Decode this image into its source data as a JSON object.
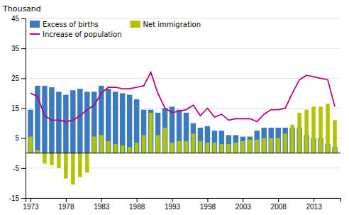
{
  "chart_data": {
    "type": "bar",
    "x": [
      1973,
      1974,
      1975,
      1976,
      1977,
      1978,
      1979,
      1980,
      1981,
      1982,
      1983,
      1984,
      1985,
      1986,
      1987,
      1988,
      1989,
      1990,
      1991,
      1992,
      1993,
      1994,
      1995,
      1996,
      1997,
      1998,
      1999,
      2000,
      2001,
      2002,
      2003,
      2004,
      2005,
      2006,
      2007,
      2008,
      2009,
      2010,
      2011,
      2012,
      2013,
      2014,
      2015,
      2016
    ],
    "series": [
      {
        "name": "Excess of births",
        "type": "bar",
        "color": "#3a7abf",
        "values": [
          14.5,
          22.5,
          22.5,
          22.0,
          20.5,
          19.5,
          21.0,
          21.5,
          20.5,
          20.5,
          22.5,
          21.5,
          20.5,
          20.0,
          19.5,
          18.0,
          14.5,
          14.5,
          13.5,
          15.0,
          15.5,
          14.5,
          13.5,
          10.0,
          8.5,
          9.0,
          7.5,
          7.5,
          6.0,
          6.0,
          5.5,
          5.5,
          7.5,
          8.5,
          8.5,
          8.5,
          8.5,
          8.5,
          8.5,
          6.0,
          5.0,
          5.0,
          3.0,
          2.0
        ]
      },
      {
        "name": "Net immigration",
        "type": "bar",
        "color": "#b5c200",
        "values": [
          5.5,
          1.0,
          -3.5,
          -4.0,
          -5.0,
          -8.5,
          -10.5,
          -8.0,
          -6.5,
          5.5,
          6.0,
          4.0,
          3.0,
          2.5,
          2.0,
          3.5,
          6.0,
          13.5,
          6.0,
          8.5,
          3.5,
          4.0,
          4.0,
          6.5,
          4.0,
          3.5,
          3.5,
          3.0,
          3.0,
          3.5,
          4.0,
          4.5,
          4.5,
          5.0,
          5.0,
          5.0,
          6.5,
          9.5,
          13.5,
          14.5,
          15.5,
          15.5,
          16.5,
          11.0
        ]
      },
      {
        "name": "Increase of population",
        "type": "line",
        "color": "#be0082",
        "values": [
          20.0,
          19.0,
          12.5,
          11.0,
          11.0,
          10.5,
          11.0,
          12.5,
          14.5,
          16.0,
          20.0,
          22.0,
          22.0,
          21.5,
          21.5,
          22.0,
          22.5,
          27.0,
          20.0,
          15.0,
          13.5,
          14.0,
          14.5,
          16.0,
          12.5,
          15.0,
          12.0,
          13.0,
          11.0,
          11.5,
          11.5,
          11.5,
          10.5,
          13.0,
          14.5,
          14.5,
          15.0,
          20.0,
          24.5,
          26.0,
          25.5,
          25.0,
          24.5,
          15.5
        ]
      }
    ],
    "ylabel": "Thousand",
    "xlim": [
      1972.3,
      2016.8
    ],
    "xticks": [
      1973,
      1978,
      1983,
      1988,
      1993,
      1998,
      2003,
      2008,
      2013
    ],
    "ylim": [
      -15,
      45
    ],
    "yticks": [
      -15,
      -5,
      5,
      15,
      25,
      35,
      45
    ],
    "grid": true,
    "legend": "top-left"
  }
}
